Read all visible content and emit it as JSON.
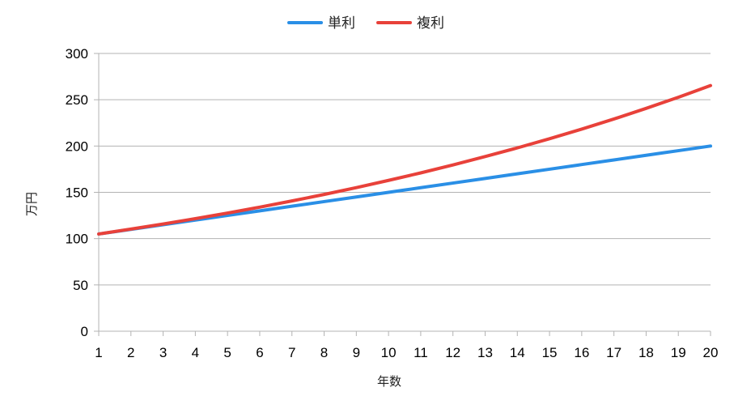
{
  "chart_data": {
    "type": "line",
    "title": "",
    "xlabel": "年数",
    "ylabel": "万円",
    "x": [
      1,
      2,
      3,
      4,
      5,
      6,
      7,
      8,
      9,
      10,
      11,
      12,
      13,
      14,
      15,
      16,
      17,
      18,
      19,
      20
    ],
    "ylim": [
      0,
      300
    ],
    "yticks": [
      0,
      50,
      100,
      150,
      200,
      250,
      300
    ],
    "grid": true,
    "legend_position": "top",
    "series": [
      {
        "name": "単利",
        "color": "#2a8fe6",
        "values": [
          105,
          110,
          115,
          120,
          125,
          130,
          135,
          140,
          145,
          150,
          155,
          160,
          165,
          170,
          175,
          180,
          185,
          190,
          195,
          200
        ]
      },
      {
        "name": "複利",
        "color": "#e8413a",
        "values": [
          105,
          110.3,
          115.8,
          121.6,
          127.6,
          134,
          140.7,
          147.7,
          155.1,
          162.9,
          171,
          179.6,
          188.6,
          198,
          207.9,
          218.3,
          229.2,
          240.7,
          252.7,
          265.3
        ]
      }
    ]
  }
}
